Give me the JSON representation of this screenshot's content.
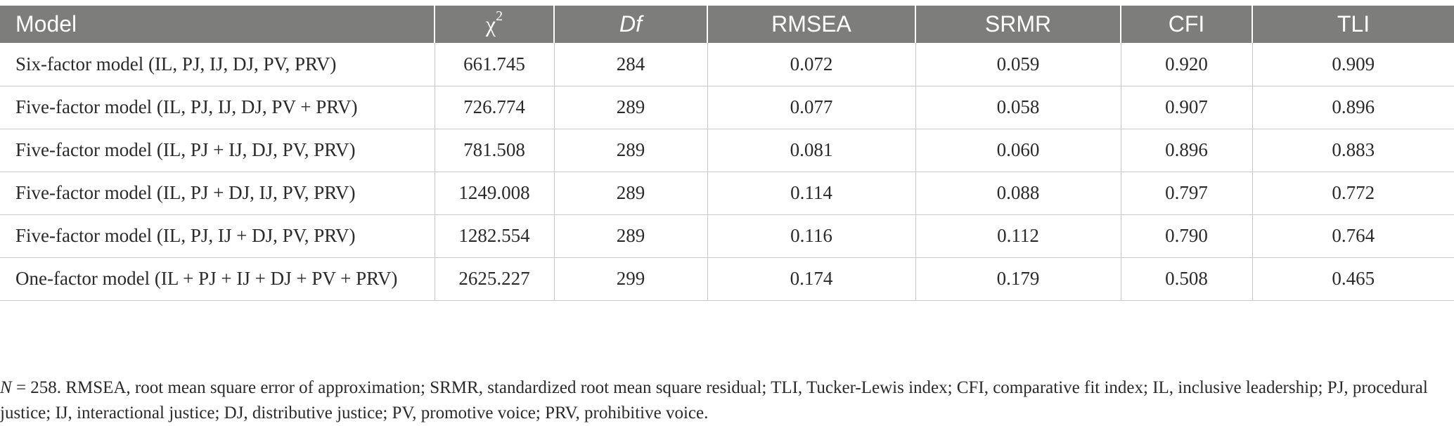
{
  "table": {
    "headers": {
      "model": "Model",
      "chi_square": "χ",
      "chi_square_sup": "2",
      "df": "Df",
      "rmsea": "RMSEA",
      "srmr": "SRMR",
      "cfi": "CFI",
      "tli": "TLI"
    },
    "rows": [
      {
        "model": "Six-factor model (IL, PJ, IJ, DJ, PV, PRV)",
        "chi_square": "661.745",
        "df": "284",
        "rmsea": "0.072",
        "srmr": "0.059",
        "cfi": "0.920",
        "tli": "0.909"
      },
      {
        "model": "Five-factor model (IL, PJ, IJ, DJ, PV + PRV)",
        "chi_square": "726.774",
        "df": "289",
        "rmsea": "0.077",
        "srmr": "0.058",
        "cfi": "0.907",
        "tli": "0.896"
      },
      {
        "model": "Five-factor model (IL, PJ + IJ, DJ, PV, PRV)",
        "chi_square": "781.508",
        "df": "289",
        "rmsea": "0.081",
        "srmr": "0.060",
        "cfi": "0.896",
        "tli": "0.883"
      },
      {
        "model": "Five-factor model (IL, PJ + DJ, IJ, PV, PRV)",
        "chi_square": "1249.008",
        "df": "289",
        "rmsea": "0.114",
        "srmr": "0.088",
        "cfi": "0.797",
        "tli": "0.772"
      },
      {
        "model": "Five-factor model (IL, PJ, IJ + DJ, PV, PRV)",
        "chi_square": "1282.554",
        "df": "289",
        "rmsea": "0.116",
        "srmr": "0.112",
        "cfi": "0.790",
        "tli": "0.764"
      },
      {
        "model": "One-factor model (IL + PJ + IJ + DJ + PV + PRV)",
        "chi_square": "2625.227",
        "df": "299",
        "rmsea": "0.174",
        "srmr": "0.179",
        "cfi": "0.508",
        "tli": "0.465"
      }
    ]
  },
  "note": {
    "n_label": "N",
    "text": " = 258. RMSEA, root mean square error of approximation; SRMR, standardized root mean square residual; TLI, Tucker-Lewis index; CFI, comparative fit index; IL, inclusive leadership; PJ, procedural justice; IJ, interactional justice; DJ, distributive justice; PV, promotive voice; PRV, prohibitive voice."
  }
}
